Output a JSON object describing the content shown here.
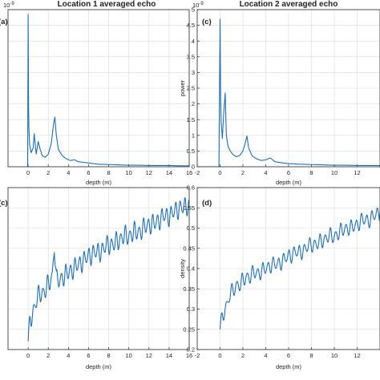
{
  "chart_data": [
    {
      "id": "a",
      "type": "line",
      "panel_label": "(a)",
      "title": "Location 1 averaged echo",
      "xlabel": "depth (m)",
      "ylabel": "",
      "exponent_label": "10^-9",
      "xlim": [
        -2,
        16
      ],
      "ylim": [
        0,
        5
      ],
      "x_ticks": [
        0,
        2,
        4,
        6,
        8,
        10,
        12,
        14,
        16
      ],
      "y_ticks": [],
      "grid": true,
      "series": [
        {
          "x": [
            -0.2,
            -0.05,
            0.0,
            0.04,
            0.08,
            0.15,
            0.3,
            0.5,
            0.6,
            0.8,
            1.0,
            1.2,
            1.4,
            1.7,
            2.0,
            2.3,
            2.5,
            2.65,
            2.8,
            3.0,
            3.4,
            3.8,
            4.2,
            4.6,
            5.0,
            5.5,
            6.0,
            6.5,
            7.0,
            8.0,
            9.0,
            10.0,
            11.0,
            12.0,
            13.0,
            14.0,
            15.0,
            16.0
          ],
          "y": [
            0.0,
            0.0,
            4.85,
            2.0,
            1.2,
            0.7,
            0.45,
            0.6,
            1.05,
            0.4,
            0.8,
            0.55,
            0.35,
            0.3,
            0.4,
            0.75,
            1.3,
            1.58,
            1.0,
            0.55,
            0.35,
            0.25,
            0.2,
            0.22,
            0.16,
            0.14,
            0.12,
            0.1,
            0.08,
            0.07,
            0.06,
            0.05,
            0.05,
            0.04,
            0.04,
            0.04,
            0.03,
            0.03
          ]
        }
      ]
    },
    {
      "id": "c",
      "type": "line",
      "panel_label": "(c)",
      "title": "Location 2 averaged echo",
      "xlabel": "depth (m)",
      "ylabel": "power",
      "exponent_label": "10^-9",
      "xlim": [
        -2,
        14
      ],
      "ylim": [
        0,
        5
      ],
      "x_ticks": [
        -2,
        0,
        2,
        4,
        6,
        8,
        10,
        12
      ],
      "y_ticks": [
        0,
        0.5,
        1,
        1.5,
        2,
        2.5,
        3,
        3.5,
        4,
        4.5,
        5
      ],
      "grid": true,
      "series": [
        {
          "x": [
            -2.0,
            -0.1,
            0.0,
            0.05,
            0.1,
            0.2,
            0.3,
            0.45,
            0.55,
            0.7,
            0.9,
            1.1,
            1.4,
            1.7,
            2.0,
            2.2,
            2.35,
            2.5,
            2.8,
            3.2,
            3.6,
            4.0,
            4.4,
            4.8,
            5.5,
            6.0,
            7.0,
            8.0,
            9.0,
            10.0,
            11.0,
            12.0,
            13.0,
            14.0
          ],
          "y": [
            0.0,
            0.0,
            4.7,
            2.2,
            1.4,
            0.9,
            1.6,
            2.35,
            1.0,
            0.65,
            0.5,
            0.4,
            0.32,
            0.35,
            0.5,
            0.75,
            0.98,
            0.6,
            0.35,
            0.25,
            0.2,
            0.22,
            0.28,
            0.16,
            0.12,
            0.1,
            0.08,
            0.07,
            0.06,
            0.05,
            0.05,
            0.04,
            0.04,
            0.04
          ]
        }
      ]
    },
    {
      "id": "b",
      "type": "line",
      "panel_label": "(c)",
      "title": "",
      "xlabel": "depth (m)",
      "ylabel": "",
      "xlim": [
        -2,
        16
      ],
      "ylim": [
        0.2,
        0.6
      ],
      "x_ticks": [
        0,
        2,
        4,
        6,
        8,
        10,
        12,
        14,
        16
      ],
      "y_ticks": [],
      "grid": true,
      "series": [
        {
          "x": [
            0.0,
            0.2,
            0.4,
            0.6,
            0.8,
            1.0,
            1.2,
            1.5,
            1.8,
            2.0,
            2.2,
            2.4,
            2.6,
            2.8,
            3.0,
            3.5,
            4.0,
            4.5,
            5.0,
            5.5,
            6.0,
            6.5,
            7.0,
            7.5,
            8.0,
            8.5,
            9.0,
            9.5,
            10.0,
            10.5,
            11.0,
            11.5,
            12.0,
            12.5,
            13.0,
            13.5,
            14.0,
            14.5,
            15.0,
            15.5,
            16.0
          ],
          "y": [
            0.22,
            0.27,
            0.29,
            0.3,
            0.32,
            0.33,
            0.34,
            0.34,
            0.35,
            0.36,
            0.37,
            0.38,
            0.46,
            0.37,
            0.37,
            0.38,
            0.39,
            0.4,
            0.41,
            0.42,
            0.43,
            0.44,
            0.44,
            0.45,
            0.46,
            0.46,
            0.47,
            0.48,
            0.48,
            0.49,
            0.49,
            0.5,
            0.51,
            0.51,
            0.52,
            0.53,
            0.53,
            0.54,
            0.55,
            0.55,
            0.56
          ]
        }
      ]
    },
    {
      "id": "d",
      "type": "line",
      "panel_label": "(d)",
      "title": "",
      "xlabel": "depth (m)",
      "ylabel": "density",
      "xlim": [
        -2,
        14
      ],
      "ylim": [
        0.2,
        0.6
      ],
      "x_ticks": [
        -2,
        0,
        2,
        4,
        6,
        8,
        10,
        12
      ],
      "y_ticks": [
        0.2,
        0.25,
        0.3,
        0.35,
        0.4,
        0.45,
        0.5,
        0.55,
        0.6
      ],
      "grid": true,
      "series": [
        {
          "x": [
            0.0,
            0.2,
            0.4,
            0.6,
            0.8,
            1.0,
            1.2,
            1.5,
            1.8,
            2.0,
            2.3,
            2.6,
            3.0,
            3.5,
            4.0,
            4.5,
            5.0,
            5.5,
            6.0,
            6.5,
            7.0,
            7.5,
            8.0,
            8.5,
            9.0,
            9.5,
            10.0,
            10.5,
            11.0,
            11.5,
            12.0,
            12.5,
            13.0,
            13.5,
            14.0
          ],
          "y": [
            0.25,
            0.28,
            0.3,
            0.31,
            0.33,
            0.34,
            0.35,
            0.36,
            0.36,
            0.37,
            0.38,
            0.38,
            0.39,
            0.39,
            0.4,
            0.41,
            0.41,
            0.42,
            0.43,
            0.44,
            0.44,
            0.45,
            0.46,
            0.46,
            0.47,
            0.48,
            0.48,
            0.49,
            0.5,
            0.5,
            0.51,
            0.52,
            0.52,
            0.53,
            0.54
          ]
        }
      ]
    }
  ]
}
